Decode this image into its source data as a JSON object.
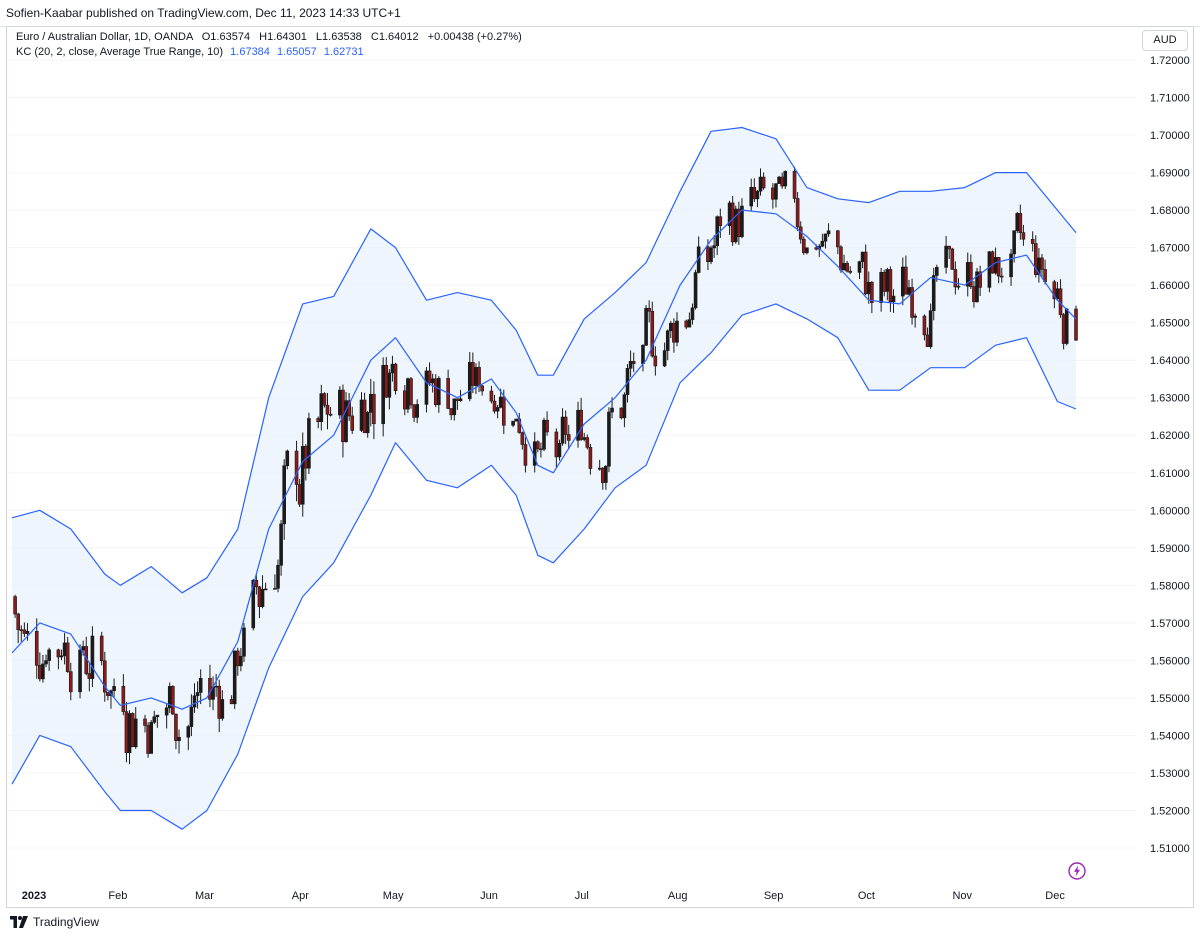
{
  "header": {
    "publish_line": "Sofien-Kaabar published on TradingView.com, Dec 11, 2023 14:33 UTC+1"
  },
  "legend": {
    "symbol_line": "Euro / Australian Dollar, 1D, OANDA",
    "open": "O1.63574",
    "high": "H1.64301",
    "low": "L1.63538",
    "close": "C1.64012",
    "change": "+0.00438 (+0.27%)",
    "indicator_name": "KC (20, 2, close, Average True Range, 10)",
    "upper": "1.67384",
    "middle": "1.65057",
    "lower": "1.62731"
  },
  "currency": "AUD",
  "footer": {
    "logo_text": "TradingView"
  },
  "colors": {
    "up_candle": "#1b1b1b",
    "down_candle": "#8b1a1a",
    "band_line": "#2962ff",
    "band_fill": "#eaf2fb",
    "badge_icon": "#9c27b0"
  },
  "chart_data": {
    "type": "line",
    "ylim": [
      1.5,
      1.725
    ],
    "y_ticks": [
      "1.72000",
      "1.71000",
      "1.70000",
      "1.69000",
      "1.68000",
      "1.67000",
      "1.66000",
      "1.65000",
      "1.64000",
      "1.63000",
      "1.62000",
      "1.61000",
      "1.60000",
      "1.59000",
      "1.58000",
      "1.57000",
      "1.56000",
      "1.55000",
      "1.54000",
      "1.53000",
      "1.52000",
      "1.51000"
    ],
    "x_ticks": [
      "2023",
      "Feb",
      "Mar",
      "Apr",
      "May",
      "Jun",
      "Jul",
      "Aug",
      "Sep",
      "Oct",
      "Nov",
      "Dec"
    ],
    "x_range": [
      "2023-01-01",
      "2023-12-11"
    ],
    "series": [
      {
        "name": "",
        "x": [
          "2023-01-01",
          "2023-01-10",
          "2023-01-20",
          "2023-01-31",
          "2023-02-05",
          "2023-02-15",
          "2023-02-25",
          "2023-03-05",
          "2023-03-15",
          "2023-03-25",
          "2023-04-05",
          "2023-04-15",
          "2023-04-27",
          "2023-05-05",
          "2023-05-15",
          "2023-05-25",
          "2023-06-05",
          "2023-06-13",
          "2023-06-20",
          "2023-06-25",
          "2023-07-05",
          "2023-07-15",
          "2023-07-25",
          "2023-08-05",
          "2023-08-15",
          "2023-08-25",
          "2023-09-05",
          "2023-09-15",
          "2023-09-25",
          "2023-10-05",
          "2023-10-15",
          "2023-10-25",
          "2023-11-05",
          "2023-11-15",
          "2023-11-25",
          "2023-12-05",
          "2023-12-11"
        ],
        "values": [
          1.598,
          1.6,
          1.595,
          1.583,
          1.58,
          1.585,
          1.578,
          1.582,
          1.595,
          1.63,
          1.655,
          1.657,
          1.675,
          1.67,
          1.656,
          1.658,
          1.656,
          1.648,
          1.636,
          1.636,
          1.651,
          1.658,
          1.666,
          1.685,
          1.701,
          1.702,
          1.699,
          1.686,
          1.683,
          1.682,
          1.685,
          1.685,
          1.686,
          1.69,
          1.69,
          1.68,
          1.674
        ]
      },
      {
        "name": "",
        "x": [
          "2023-01-01",
          "2023-01-10",
          "2023-01-20",
          "2023-01-31",
          "2023-02-05",
          "2023-02-15",
          "2023-02-25",
          "2023-03-05",
          "2023-03-15",
          "2023-03-25",
          "2023-04-05",
          "2023-04-15",
          "2023-04-27",
          "2023-05-05",
          "2023-05-15",
          "2023-05-25",
          "2023-06-05",
          "2023-06-13",
          "2023-06-20",
          "2023-06-25",
          "2023-07-05",
          "2023-07-15",
          "2023-07-25",
          "2023-08-05",
          "2023-08-15",
          "2023-08-25",
          "2023-09-05",
          "2023-09-15",
          "2023-09-25",
          "2023-10-05",
          "2023-10-15",
          "2023-10-25",
          "2023-11-05",
          "2023-11-15",
          "2023-11-25",
          "2023-12-05",
          "2023-12-11"
        ],
        "values": [
          1.562,
          1.57,
          1.567,
          1.553,
          1.548,
          1.55,
          1.547,
          1.55,
          1.565,
          1.595,
          1.613,
          1.62,
          1.64,
          1.646,
          1.634,
          1.63,
          1.635,
          1.626,
          1.612,
          1.61,
          1.623,
          1.63,
          1.64,
          1.66,
          1.672,
          1.68,
          1.679,
          1.673,
          1.665,
          1.656,
          1.655,
          1.662,
          1.66,
          1.666,
          1.668,
          1.656,
          1.651
        ]
      },
      {
        "name": "",
        "x": [
          "2023-01-01",
          "2023-01-10",
          "2023-01-20",
          "2023-01-31",
          "2023-02-05",
          "2023-02-15",
          "2023-02-25",
          "2023-03-05",
          "2023-03-15",
          "2023-03-25",
          "2023-04-05",
          "2023-04-15",
          "2023-04-27",
          "2023-05-05",
          "2023-05-15",
          "2023-05-25",
          "2023-06-05",
          "2023-06-13",
          "2023-06-20",
          "2023-06-25",
          "2023-07-05",
          "2023-07-15",
          "2023-07-25",
          "2023-08-05",
          "2023-08-15",
          "2023-08-25",
          "2023-09-05",
          "2023-09-15",
          "2023-09-25",
          "2023-10-05",
          "2023-10-15",
          "2023-10-25",
          "2023-11-05",
          "2023-11-15",
          "2023-11-25",
          "2023-12-05",
          "2023-12-11"
        ],
        "values": [
          1.527,
          1.54,
          1.537,
          1.525,
          1.52,
          1.52,
          1.515,
          1.52,
          1.535,
          1.558,
          1.577,
          1.586,
          1.604,
          1.618,
          1.608,
          1.606,
          1.612,
          1.604,
          1.588,
          1.586,
          1.595,
          1.606,
          1.612,
          1.634,
          1.642,
          1.652,
          1.655,
          1.651,
          1.646,
          1.632,
          1.632,
          1.638,
          1.638,
          1.644,
          1.646,
          1.629,
          1.627
        ]
      }
    ],
    "candles_shown": true,
    "grid": true,
    "legend": "top-left"
  }
}
